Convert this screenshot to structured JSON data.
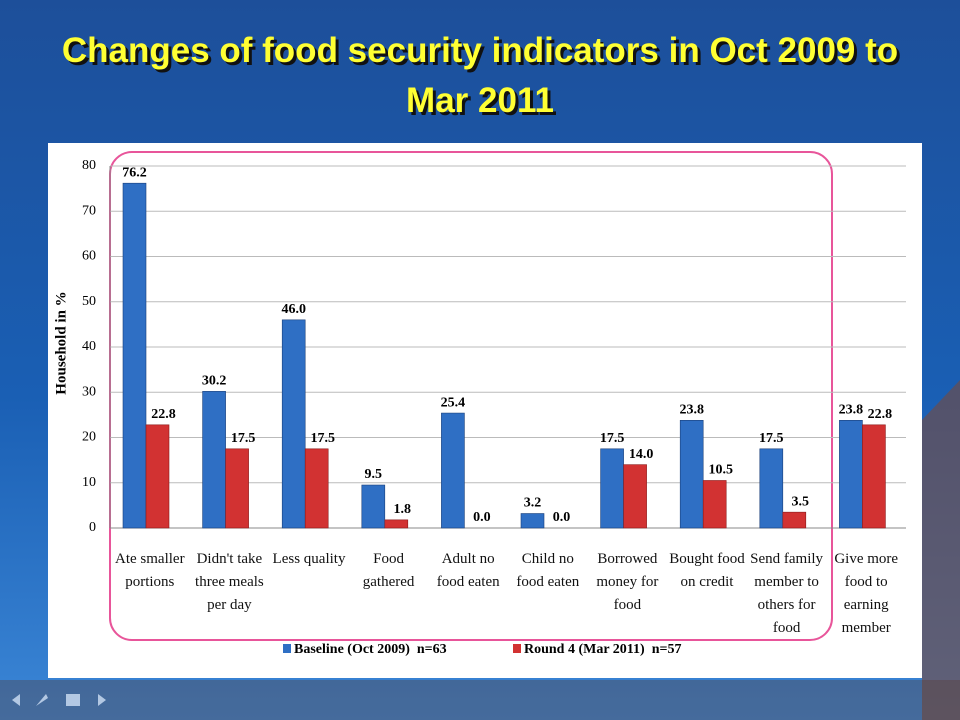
{
  "chart_data": {
    "type": "bar",
    "title": "Changes of food security indicators in Oct 2009 to Mar 2011",
    "y_label": "Household in %",
    "categories": [
      "Ate smaller portions",
      "Didn't take three meals per day",
      "Less quality",
      "Food gathered",
      "Adult no food eaten",
      "Child no food eaten",
      "Borrowed money for food",
      "Bought food on credit",
      "Send family member to others for food",
      "Give more food to earning member"
    ],
    "series": [
      {
        "name": "Baseline (Oct 2009)  n=63",
        "color": "#2f6fc4",
        "values": [
          76.2,
          30.2,
          46.0,
          9.5,
          25.4,
          3.2,
          17.5,
          23.8,
          17.5,
          23.8
        ],
        "value_labels": [
          "76.2",
          "30.2",
          "46.0",
          "9.5",
          "25.4",
          "3.2",
          "17.5",
          "23.8",
          "17.5",
          "23.8"
        ]
      },
      {
        "name": "Round 4 (Mar 2011)  n=57",
        "color": "#d23232",
        "values": [
          22.8,
          17.5,
          17.5,
          1.8,
          0.0,
          0.0,
          14.0,
          10.5,
          3.5,
          22.8
        ],
        "value_labels": [
          "22.8",
          "17.5",
          "17.5",
          "1.8",
          "0.0",
          "0.0",
          "14.0",
          "10.5",
          "3.5",
          "22.8"
        ]
      }
    ],
    "ylim": [
      0,
      80
    ],
    "yticks": [
      0,
      10,
      20,
      30,
      40,
      50,
      60,
      70,
      80
    ],
    "grid": true,
    "legend": "bottom"
  }
}
